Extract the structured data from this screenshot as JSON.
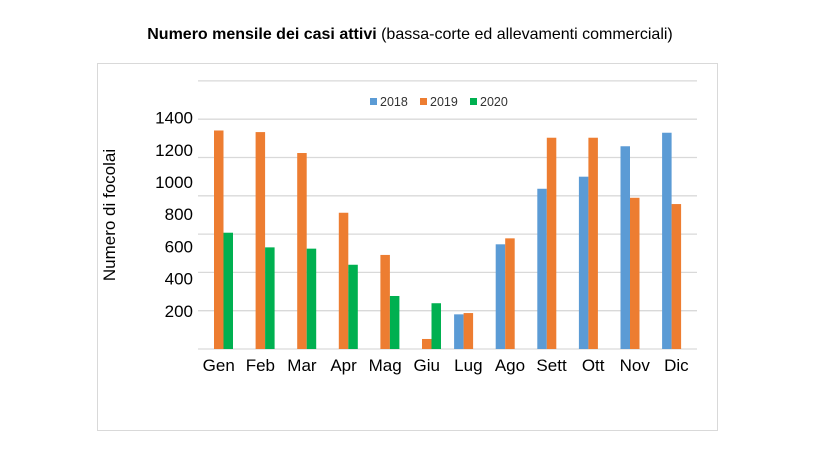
{
  "title_bold": "Numero mensile dei casi attivi",
  "title_rest": " (bassa-corte ed allevamenti commerciali)",
  "chart_data": {
    "type": "bar",
    "title": "Numero mensile dei casi attivi (bassa-corte ed allevamenti commerciali)",
    "ylabel": "Numero di focolai",
    "xlabel": "",
    "categories": [
      "Gen",
      "Feb",
      "Mar",
      "Apr",
      "Mag",
      "Giu",
      "Lug",
      "Ago",
      "Sett",
      "Ott",
      "Nov",
      "Dic"
    ],
    "yticks": [
      200,
      400,
      600,
      800,
      1000,
      1200,
      1400
    ],
    "ylim": [
      0,
      1400
    ],
    "grid": true,
    "legend_position": "top-center",
    "series": [
      {
        "name": "2018",
        "color": "#5b9bd5",
        "values": [
          null,
          null,
          null,
          null,
          null,
          null,
          178,
          613,
          958,
          1033,
          1222,
          1306
        ]
      },
      {
        "name": "2019",
        "color": "#ed7d31",
        "values": [
          1320,
          1310,
          1180,
          809,
          547,
          25,
          186,
          650,
          1275,
          1275,
          902,
          863
        ]
      },
      {
        "name": "2020",
        "color": "#00b050",
        "values": [
          685,
          594,
          586,
          486,
          292,
          247,
          null,
          null,
          null,
          null,
          null,
          null
        ]
      }
    ]
  }
}
